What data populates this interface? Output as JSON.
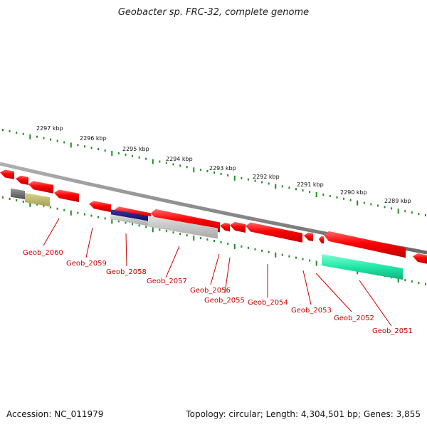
{
  "title": "Geobacter sp. FRC-32, complete genome",
  "footer": {
    "accession": "Accession: NC_011979",
    "summary": "Topology: circular; Length: 4,304,501 bp; Genes: 3,855"
  },
  "colors": {
    "backbone": "#8a8a8a",
    "ruler": "#228b22",
    "gene_forward": "#ff0000",
    "label": "#cc0000"
  },
  "ruler_labels": [
    "2297 kbp",
    "2296 kbp",
    "2295 kbp",
    "2294 kbp",
    "2293 kbp",
    "2292 kbp",
    "2291 kbp",
    "2290 kbp",
    "2289 kbp"
  ],
  "gene_labels": [
    "Geob_2060",
    "Geob_2059",
    "Geob_2058",
    "Geob_2057",
    "Geob_2056",
    "Geob_2055",
    "Geob_2054",
    "Geob_2053",
    "Geob_2052",
    "Geob_2051"
  ]
}
